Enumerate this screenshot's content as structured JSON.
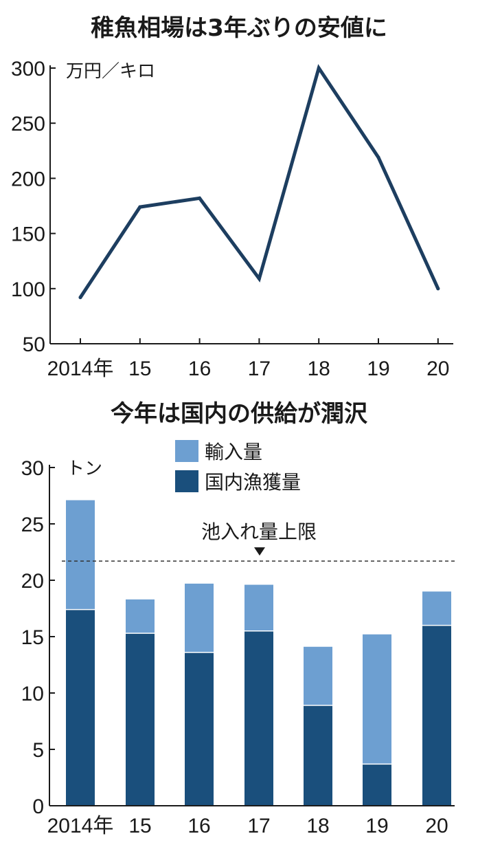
{
  "chart_data": [
    {
      "type": "line",
      "title": "稚魚相場は3年ぶりの安値に",
      "unit": "万円／キロ",
      "categories": [
        "2014年",
        "15",
        "16",
        "17",
        "18",
        "19",
        "20"
      ],
      "values": [
        92,
        174,
        182,
        109,
        300,
        219,
        100
      ],
      "ylim": [
        50,
        300
      ],
      "yticks": [
        50,
        100,
        150,
        200,
        250,
        300
      ],
      "colors": {
        "line": "#1d3e60",
        "axis": "#1a1a1a"
      }
    },
    {
      "type": "bar",
      "stacked": true,
      "title": "今年は国内の供給が潤沢",
      "unit": "トン",
      "categories": [
        "2014年",
        "15",
        "16",
        "17",
        "18",
        "19",
        "20"
      ],
      "series": [
        {
          "name": "国内漁獲量",
          "values": [
            17.4,
            15.3,
            13.6,
            15.5,
            8.9,
            3.7,
            16.0
          ],
          "color": "#1a4f7c"
        },
        {
          "name": "輸入量",
          "values": [
            9.7,
            3.0,
            6.1,
            4.1,
            5.2,
            11.5,
            3.0
          ],
          "color": "#6d9fd1"
        }
      ],
      "ylim": [
        0,
        30
      ],
      "yticks": [
        0,
        5,
        10,
        15,
        20,
        25,
        30
      ],
      "reference_line": {
        "label": "池入れ量上限",
        "value": 21.7
      }
    }
  ]
}
